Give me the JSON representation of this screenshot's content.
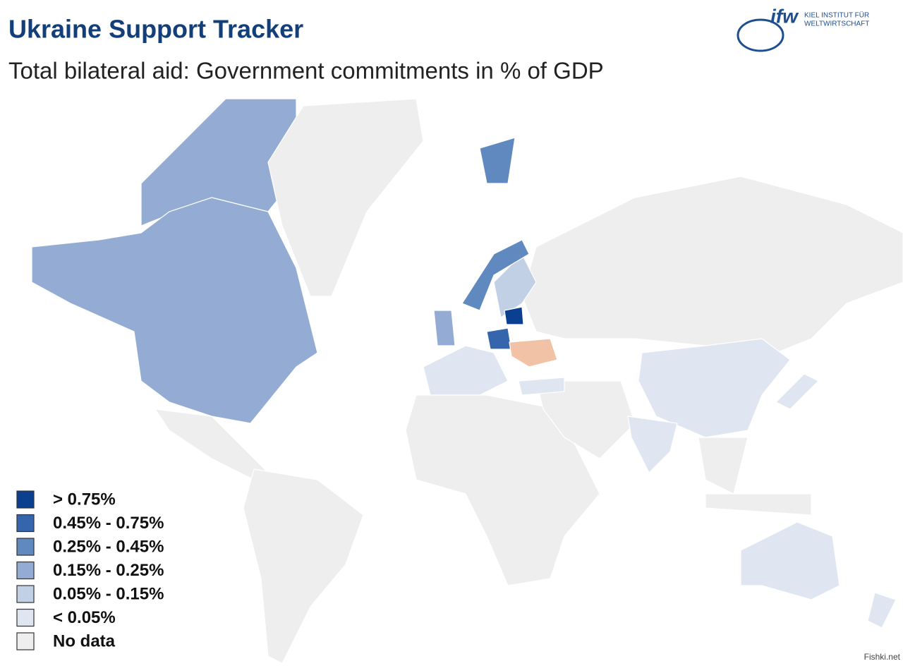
{
  "header": {
    "title": "Ukraine Support Tracker",
    "subtitle": "Total bilateral aid: Government commitments in % of GDP",
    "logo": {
      "mark": "ifw",
      "line1": "KIEL INSTITUT FÜR",
      "line2": "WELTWIRTSCHAFT"
    }
  },
  "legend": [
    {
      "label": "> 0.75%",
      "color": "#0b3f8f"
    },
    {
      "label": "0.45% - 0.75%",
      "color": "#3566ad"
    },
    {
      "label": "0.25% - 0.45%",
      "color": "#6089bf"
    },
    {
      "label": "0.15% - 0.25%",
      "color": "#94acd3"
    },
    {
      "label": "0.05% - 0.15%",
      "color": "#c2d0e6"
    },
    {
      "label": "< 0.05%",
      "color": "#dfe6f1"
    },
    {
      "label": "No data",
      "color": "#eeeeee"
    }
  ],
  "watermark": "Fishki.net"
}
